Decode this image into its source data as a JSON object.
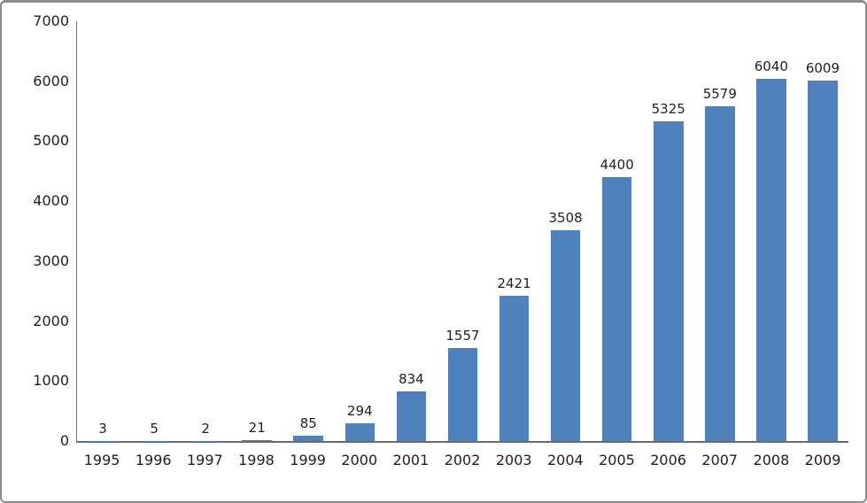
{
  "chart_data": {
    "type": "bar",
    "title": "",
    "xlabel": "",
    "ylabel": "",
    "categories": [
      "1995",
      "1996",
      "1997",
      "1998",
      "1999",
      "2000",
      "2001",
      "2002",
      "2003",
      "2004",
      "2005",
      "2006",
      "2007",
      "2008",
      "2009"
    ],
    "values": [
      3,
      5,
      2,
      21,
      85,
      294,
      834,
      1557,
      2421,
      3508,
      4400,
      5325,
      5579,
      6040,
      6009
    ],
    "data_labels": [
      "3",
      "5",
      "2",
      "21",
      "85",
      "294",
      "834",
      "1557",
      "2421",
      "3508",
      "4400",
      "5325",
      "5579",
      "6040",
      "6009"
    ],
    "ylim": [
      0,
      7000
    ],
    "yticks": [
      "0",
      "1000",
      "2000",
      "3000",
      "4000",
      "5000",
      "6000",
      "7000"
    ],
    "grid": false,
    "legend_position": "none",
    "colors": {
      "bar": "#4F81BD",
      "axis_line": "#707070",
      "text": "#1f1f1f",
      "frame_border": "#8c8c8c",
      "background": "#ffffff"
    }
  }
}
